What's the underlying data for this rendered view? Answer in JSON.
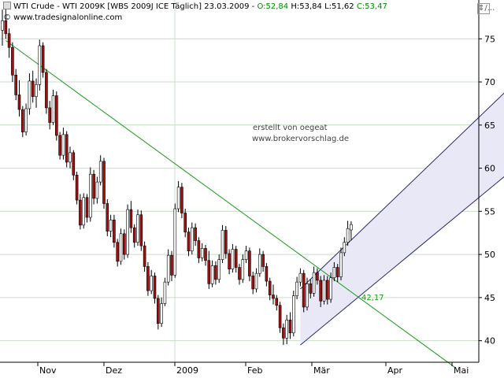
{
  "header": {
    "title": "WTI Crude - WTI 2009K [WBS 2009J ICE  Täglich] 23.03.2009 - ",
    "o": "O:52,84",
    "h": "H:53,84",
    "l": "L:51,62",
    "c": "C:53,47",
    "copyright": "© www.tradesignalonline.com",
    "corner_icon": "⇕/..."
  },
  "annotations": {
    "created_by": "erstellt von oegeat",
    "site": "www.brokervorschlag.de",
    "channel_label": "42,17"
  },
  "colors": {
    "up_candle": "#ffffff",
    "down_candle": "#a01010",
    "trendline": "#1a9a1a",
    "channel": "#2a2a6a",
    "channel_fill": "#e8e8f6",
    "grid": "#c8dcc8"
  },
  "chart_data": {
    "type": "candlestick",
    "y_ticks": [
      40,
      45,
      50,
      55,
      60,
      65,
      70,
      75
    ],
    "ylim": [
      37.5,
      79.5
    ],
    "x_labels": [
      "Nov",
      "Dez",
      "2009",
      "Feb",
      "Mär",
      "Apr",
      "Mai"
    ],
    "grid": "horizontal + 2009 vertical line",
    "downtrend_line": [
      [
        1,
        74.8
      ],
      [
        134,
        36.8
      ]
    ],
    "channel": {
      "lower": [
        [
          88,
          39.5
        ],
        [
          150,
          59.6
        ]
      ],
      "upper": [
        [
          88,
          46.0
        ],
        [
          150,
          69.4
        ]
      ]
    },
    "candles": [
      [
        76.0,
        78.4,
        74.2,
        77.1
      ],
      [
        77.1,
        78.5,
        75.0,
        75.6
      ],
      [
        75.6,
        76.2,
        72.8,
        74.0
      ],
      [
        74.0,
        74.6,
        70.0,
        70.8
      ],
      [
        70.8,
        71.5,
        67.9,
        68.5
      ],
      [
        68.5,
        70.2,
        66.0,
        66.8
      ],
      [
        66.8,
        67.2,
        63.6,
        64.2
      ],
      [
        64.2,
        67.5,
        63.8,
        66.9
      ],
      [
        66.9,
        71.0,
        66.2,
        70.1
      ],
      [
        70.1,
        71.3,
        67.6,
        68.3
      ],
      [
        68.3,
        70.4,
        67.0,
        69.7
      ],
      [
        69.7,
        74.9,
        69.0,
        74.2
      ],
      [
        74.2,
        74.6,
        70.5,
        71.1
      ],
      [
        71.1,
        71.5,
        66.3,
        67.0
      ],
      [
        67.0,
        67.8,
        64.5,
        65.3
      ],
      [
        65.3,
        69.1,
        65.0,
        68.4
      ],
      [
        68.4,
        68.9,
        63.2,
        63.8
      ],
      [
        63.8,
        64.2,
        61.0,
        61.5
      ],
      [
        61.5,
        64.7,
        61.0,
        63.9
      ],
      [
        63.9,
        64.3,
        60.1,
        60.7
      ],
      [
        60.7,
        62.5,
        60.0,
        61.8
      ],
      [
        61.8,
        62.1,
        58.6,
        59.2
      ],
      [
        59.2,
        59.6,
        55.8,
        56.3
      ],
      [
        56.3,
        57.0,
        52.9,
        53.4
      ],
      [
        53.4,
        57.1,
        53.0,
        56.6
      ],
      [
        56.6,
        57.0,
        53.7,
        54.3
      ],
      [
        54.3,
        60.1,
        53.8,
        59.3
      ],
      [
        59.3,
        59.8,
        55.8,
        56.5
      ],
      [
        56.5,
        59.0,
        55.9,
        58.4
      ],
      [
        58.4,
        61.5,
        58.0,
        60.8
      ],
      [
        60.8,
        61.2,
        55.3,
        55.9
      ],
      [
        55.9,
        56.4,
        52.1,
        52.7
      ],
      [
        52.7,
        54.6,
        52.0,
        54.0
      ],
      [
        54.0,
        54.6,
        50.8,
        51.4
      ],
      [
        51.4,
        51.8,
        48.6,
        49.2
      ],
      [
        49.2,
        53.0,
        48.8,
        52.4
      ],
      [
        52.4,
        52.9,
        49.4,
        50.0
      ],
      [
        50.0,
        55.8,
        49.6,
        55.2
      ],
      [
        55.2,
        56.2,
        52.5,
        53.1
      ],
      [
        53.1,
        53.5,
        50.8,
        51.4
      ],
      [
        51.4,
        55.2,
        51.0,
        54.6
      ],
      [
        54.6,
        55.1,
        50.4,
        51.0
      ],
      [
        51.0,
        51.5,
        48.0,
        48.6
      ],
      [
        48.6,
        49.1,
        45.2,
        45.8
      ],
      [
        45.8,
        48.2,
        45.4,
        47.5
      ],
      [
        47.5,
        47.9,
        44.3,
        44.9
      ],
      [
        44.9,
        45.3,
        41.3,
        42.0
      ],
      [
        42.0,
        45.0,
        41.6,
        44.3
      ],
      [
        44.3,
        47.3,
        44.0,
        46.8
      ],
      [
        46.8,
        50.6,
        46.4,
        49.9
      ],
      [
        49.9,
        50.4,
        46.9,
        47.6
      ],
      [
        47.6,
        55.9,
        47.3,
        55.3
      ],
      [
        55.3,
        58.5,
        54.9,
        57.8
      ],
      [
        57.8,
        58.3,
        54.2,
        54.8
      ],
      [
        54.8,
        55.3,
        52.0,
        52.6
      ],
      [
        52.6,
        53.1,
        49.8,
        50.4
      ],
      [
        50.4,
        53.7,
        50.0,
        53.1
      ],
      [
        53.1,
        53.6,
        51.0,
        51.6
      ],
      [
        51.6,
        52.0,
        49.0,
        49.6
      ],
      [
        49.6,
        51.3,
        49.2,
        50.7
      ],
      [
        50.7,
        51.1,
        48.7,
        49.3
      ],
      [
        49.3,
        50.4,
        46.0,
        46.6
      ],
      [
        46.6,
        49.3,
        46.2,
        48.7
      ],
      [
        48.7,
        49.2,
        46.5,
        47.1
      ],
      [
        47.1,
        50.0,
        46.7,
        49.4
      ],
      [
        49.4,
        53.4,
        49.0,
        52.8
      ],
      [
        52.8,
        53.3,
        49.5,
        50.1
      ],
      [
        50.1,
        50.6,
        47.7,
        48.3
      ],
      [
        48.3,
        51.2,
        47.9,
        50.6
      ],
      [
        50.6,
        51.0,
        47.9,
        48.5
      ],
      [
        48.5,
        48.9,
        46.5,
        47.1
      ],
      [
        47.1,
        50.0,
        46.7,
        49.4
      ],
      [
        49.4,
        51.0,
        49.0,
        50.4
      ],
      [
        50.4,
        50.8,
        46.9,
        47.5
      ],
      [
        47.5,
        48.0,
        45.4,
        46.0
      ],
      [
        46.0,
        48.4,
        45.6,
        47.8
      ],
      [
        47.8,
        50.7,
        47.4,
        50.0
      ],
      [
        50.0,
        50.4,
        48.0,
        48.6
      ],
      [
        48.6,
        49.0,
        46.3,
        46.9
      ],
      [
        46.9,
        47.3,
        44.7,
        45.3
      ],
      [
        45.3,
        46.5,
        44.2,
        44.9
      ],
      [
        44.9,
        45.3,
        43.5,
        44.1
      ],
      [
        44.1,
        44.5,
        40.9,
        41.5
      ],
      [
        41.5,
        42.0,
        39.5,
        40.3
      ],
      [
        40.3,
        43.0,
        39.6,
        42.4
      ],
      [
        42.4,
        43.3,
        40.2,
        40.9
      ],
      [
        40.9,
        45.8,
        40.5,
        45.2
      ],
      [
        45.2,
        47.4,
        44.8,
        46.8
      ],
      [
        46.8,
        48.4,
        46.3,
        47.8
      ],
      [
        47.8,
        48.2,
        43.3,
        43.9
      ],
      [
        43.9,
        47.3,
        43.5,
        46.6
      ],
      [
        46.6,
        47.1,
        44.9,
        45.5
      ],
      [
        45.5,
        48.6,
        45.1,
        47.9
      ],
      [
        47.9,
        48.4,
        46.5,
        47.0
      ],
      [
        47.0,
        47.5,
        43.9,
        44.6
      ],
      [
        44.6,
        47.6,
        44.2,
        47.0
      ],
      [
        47.0,
        47.5,
        44.2,
        44.8
      ],
      [
        44.8,
        47.9,
        44.4,
        47.3
      ],
      [
        47.3,
        49.1,
        46.9,
        48.5
      ],
      [
        48.5,
        48.9,
        46.8,
        47.4
      ],
      [
        47.4,
        50.8,
        47.0,
        50.2
      ],
      [
        50.2,
        52.0,
        49.8,
        51.4
      ],
      [
        51.4,
        53.9,
        51.0,
        53.0
      ],
      [
        52.84,
        53.84,
        51.62,
        53.47
      ]
    ]
  }
}
